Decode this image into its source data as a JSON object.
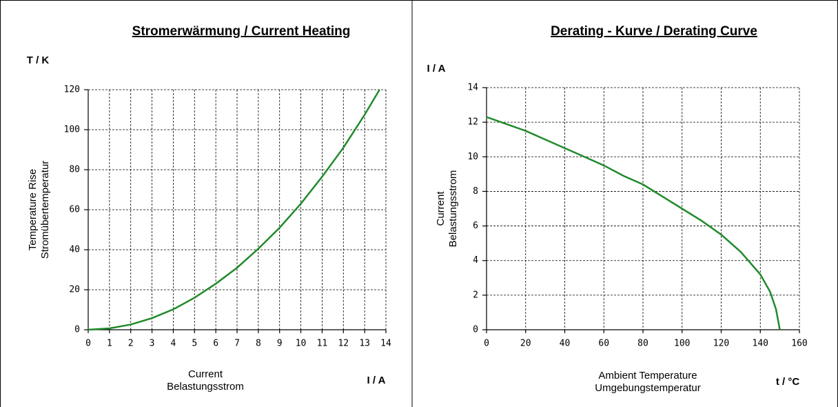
{
  "chart_data": [
    {
      "type": "line",
      "title": "Stromerwärmung / Current Heating",
      "y_unit": "T / K",
      "x_unit": "I / A",
      "ylabel": [
        "Temperature Rise",
        "Stromübertemperatur"
      ],
      "xlabel": [
        "Current",
        "Belastungsstrom"
      ],
      "x": [
        0,
        1,
        2,
        3,
        4,
        5,
        6,
        7,
        8,
        9,
        10,
        11,
        12,
        13,
        13.7
      ],
      "values": [
        0,
        0.7,
        2.6,
        5.8,
        10.2,
        16,
        23,
        31,
        40.5,
        51,
        63,
        76.5,
        91,
        107.5,
        120
      ],
      "color": "#1f8a2a",
      "xlim": [
        0,
        14
      ],
      "ylim": [
        0,
        120
      ],
      "xticks": [
        0,
        1,
        2,
        3,
        4,
        5,
        6,
        7,
        8,
        9,
        10,
        11,
        12,
        13,
        14
      ],
      "yticks": [
        0,
        20,
        40,
        60,
        80,
        100,
        120
      ],
      "grid": true
    },
    {
      "type": "line",
      "title": "Derating - Kurve / Derating Curve",
      "y_unit": "I / A",
      "x_unit": "t / °C",
      "ylabel": [
        "Current",
        "Belastungsstrom"
      ],
      "xlabel": [
        "Ambient Temperature",
        "Umgebungstemperatur"
      ],
      "x": [
        0,
        10,
        20,
        30,
        40,
        50,
        60,
        70,
        80,
        90,
        100,
        110,
        120,
        130,
        140,
        145,
        148,
        150
      ],
      "values": [
        12.3,
        11.9,
        11.5,
        11.0,
        10.5,
        10.0,
        9.5,
        8.9,
        8.4,
        7.7,
        7.0,
        6.3,
        5.5,
        4.5,
        3.2,
        2.2,
        1.2,
        0
      ],
      "color": "#1f8a2a",
      "xlim": [
        0,
        160
      ],
      "ylim": [
        0,
        14
      ],
      "xticks": [
        0,
        20,
        40,
        60,
        80,
        100,
        120,
        140,
        160
      ],
      "yticks": [
        0,
        2,
        4,
        6,
        8,
        10,
        12,
        14
      ],
      "grid": true
    }
  ]
}
